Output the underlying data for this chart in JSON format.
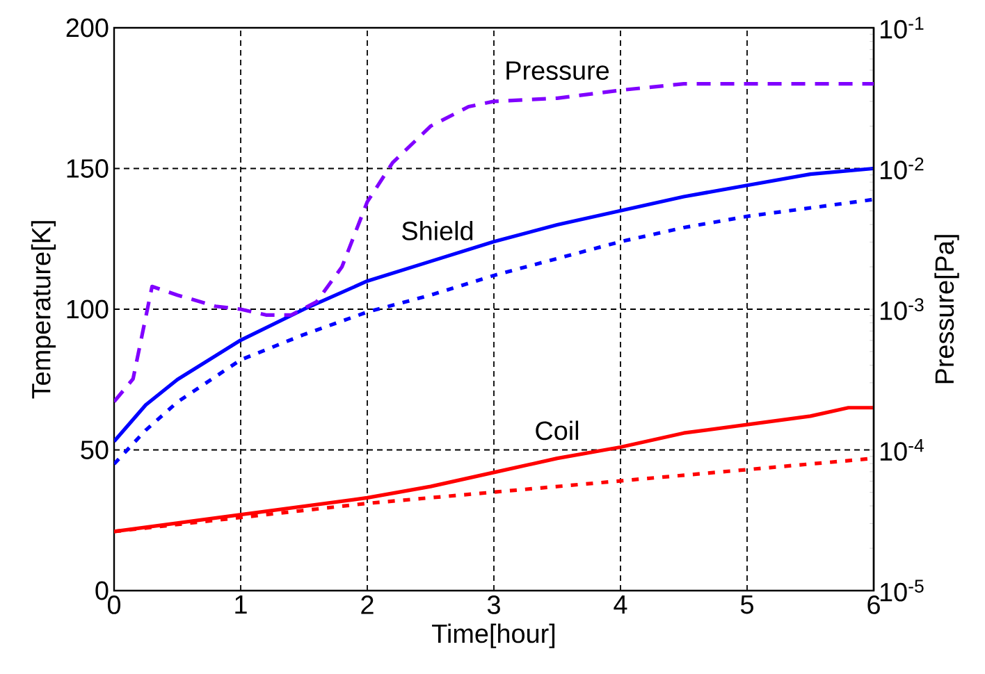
{
  "chart_data": {
    "type": "line",
    "xlabel": "Time[hour]",
    "ylabel": "Temperature[K]",
    "y2label": "Pressure[Pa]",
    "xlim": [
      0,
      6
    ],
    "xticks": [
      0,
      1,
      2,
      3,
      4,
      5,
      6
    ],
    "ylim": [
      0,
      200
    ],
    "yticks": [
      0,
      50,
      100,
      150,
      200
    ],
    "y2lim": [
      1e-05,
      0.1
    ],
    "y2ticks": [
      {
        "value": 1e-05,
        "label": "10$^{-5}$"
      },
      {
        "value": 0.0001,
        "label": "10$^{-4}$"
      },
      {
        "value": 0.001,
        "label": "10$^{-3}$"
      },
      {
        "value": 0.01,
        "label": "10$^{-2}$"
      },
      {
        "value": 0.1,
        "label": "10$^{-1}$"
      }
    ],
    "log": "y2",
    "grid": true,
    "marker": "none",
    "series": [
      {
        "name": "Pressure",
        "color": "#8000ff",
        "line_style": "dashed",
        "axis": "y2",
        "x": [
          0,
          0.15,
          0.3,
          0.5,
          0.8,
          1.0,
          1.2,
          1.4,
          1.6,
          1.8,
          2.0,
          2.2,
          2.5,
          2.8,
          3.0,
          3.5,
          4.0,
          4.5,
          5.0,
          6.0
        ],
        "values": [
          0.00022,
          0.00032,
          0.00145,
          0.00126,
          0.00105,
          0.001,
          0.00091,
          0.00091,
          0.00113,
          0.002,
          0.0058,
          0.011,
          0.02,
          0.0275,
          0.03,
          0.0316,
          0.036,
          0.04,
          0.04,
          0.04
        ]
      },
      {
        "name": "Shield",
        "color": "#0000ff",
        "line_style": "solid",
        "x": [
          0,
          0.25,
          0.5,
          1,
          1.5,
          2,
          2.5,
          3,
          3.5,
          4,
          4.5,
          5,
          5.5,
          6
        ],
        "values": [
          53,
          66,
          75,
          89,
          100,
          110,
          117,
          124,
          130,
          135,
          140,
          144,
          148,
          150
        ]
      },
      {
        "color": "#0000ff",
        "line_style": "dotted",
        "x": [
          0,
          0.25,
          0.5,
          1,
          1.5,
          2,
          2.5,
          3,
          3.5,
          4,
          4.5,
          5,
          5.5,
          6
        ],
        "values": [
          45,
          57,
          67,
          82,
          91,
          99,
          105,
          112,
          118,
          124,
          129,
          133,
          136,
          139
        ]
      },
      {
        "name": "Coil",
        "color": "#ff0000",
        "line_style": "solid",
        "x": [
          0,
          1,
          2,
          2.5,
          3,
          3.5,
          4,
          4.5,
          5,
          5.5,
          5.8,
          6
        ],
        "values": [
          21,
          27,
          33,
          37,
          42,
          47,
          51,
          56,
          59,
          62,
          65,
          65
        ]
      },
      {
        "color": "#ff0000",
        "line_style": "dotted",
        "x": [
          0,
          1,
          2,
          3,
          4,
          5,
          6
        ],
        "values": [
          21,
          26,
          31,
          35,
          39,
          43,
          47
        ]
      }
    ]
  }
}
